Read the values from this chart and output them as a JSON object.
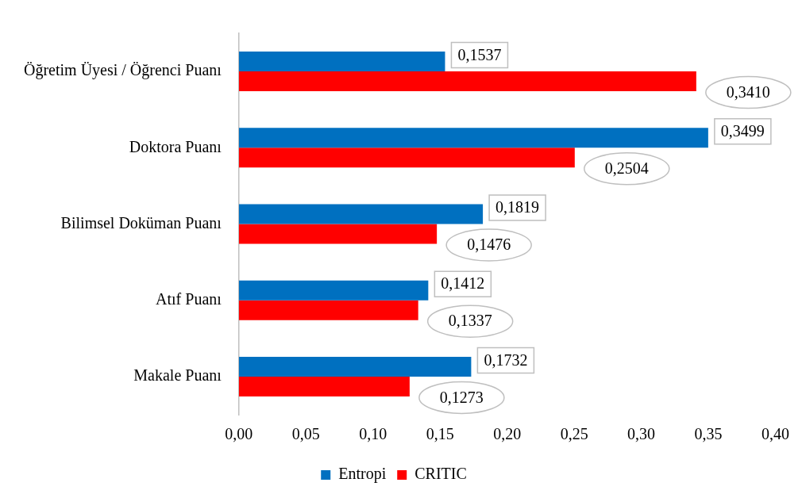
{
  "chart_data": {
    "type": "bar",
    "orientation": "horizontal",
    "categories": [
      "Öğretim Üyesi / Öğrenci Puanı",
      "Doktora Puanı",
      "Bilimsel Doküman Puanı",
      "Atıf Puanı",
      "Makale Puanı"
    ],
    "series": [
      {
        "name": "Entropi",
        "color": "#0070c0",
        "values": [
          0.1537,
          0.3499,
          0.1819,
          0.1412,
          0.1732
        ],
        "value_labels": [
          "0,1537",
          "0,3499",
          "0,1819",
          "0,1412",
          "0,1732"
        ]
      },
      {
        "name": "CRITIC",
        "color": "#ff0000",
        "values": [
          0.341,
          0.2504,
          0.1476,
          0.1337,
          0.1273
        ],
        "value_labels": [
          "0,3410",
          "0,2504",
          "0,1476",
          "0,1337",
          "0,1273"
        ]
      }
    ],
    "xlim": [
      0,
      0.4
    ],
    "xticks": [
      {
        "value": 0,
        "label": "0,00"
      },
      {
        "value": 0.05,
        "label": "0,05"
      },
      {
        "value": 0.1,
        "label": "0,10"
      },
      {
        "value": 0.15,
        "label": "0,15"
      },
      {
        "value": 0.2,
        "label": "0,20"
      },
      {
        "value": 0.25,
        "label": "0,25"
      },
      {
        "value": 0.3,
        "label": "0,30"
      },
      {
        "value": 0.35,
        "label": "0,35"
      },
      {
        "value": 0.4,
        "label": "0,40"
      }
    ],
    "grid": false,
    "legend": "bottom"
  }
}
